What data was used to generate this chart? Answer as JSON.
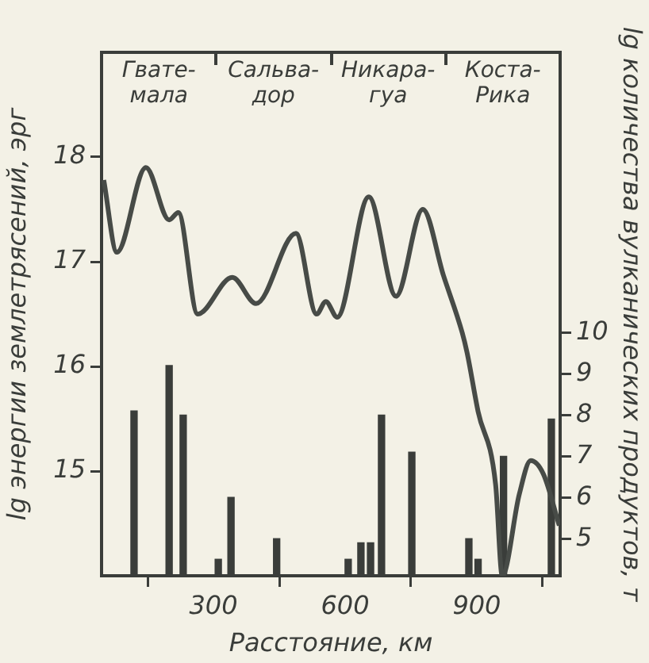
{
  "chart_data": {
    "type": "line",
    "xlabel": "Расстояние, км",
    "ylabel": "lg энергии землетрясений, эрг",
    "y2label": "lg количества вулканических продуктов, т",
    "xlim": [
      45,
      1090
    ],
    "xticks": [
      300,
      600,
      900
    ],
    "ylim": [
      14,
      19
    ],
    "yticks": [
      15,
      16,
      17,
      18
    ],
    "y2lim": [
      4.1,
      16.8
    ],
    "y2ticks": [
      5,
      6,
      7,
      8,
      9,
      10
    ],
    "grid": false,
    "legend": false,
    "marker": "none",
    "line_style": "solid",
    "annotations": [
      "Гвате-\nмала",
      "Сальва-\nдор",
      "Никара-\nгуа",
      "Коста-\nРика"
    ],
    "series": [
      {
        "color": "#474b47",
        "x": [
          50,
          80,
          146,
          199,
          220,
          264,
          343,
          397,
          488,
          535,
          556,
          582,
          654,
          716,
          777,
          824,
          867,
          878,
          903,
          943,
          958,
          997,
          1023,
          1052,
          1088
        ],
        "values": [
          17.78,
          17.09,
          17.9,
          17.4,
          17.47,
          16.5,
          16.85,
          16.6,
          17.27,
          16.5,
          16.62,
          16.47,
          17.62,
          16.67,
          17.5,
          16.87,
          16.32,
          16.13,
          15.57,
          14.87,
          14.0,
          14.78,
          15.1,
          14.97,
          14.48
        ]
      },
      {
        "type": "bar",
        "axis": "y2",
        "color": "#3a3d3a",
        "x": [
          119,
          199,
          231,
          311,
          340,
          444,
          607,
          636,
          658,
          683,
          752,
          882,
          903,
          961,
          1070
        ],
        "values": [
          8.1,
          9.2,
          8.0,
          4.5,
          6.0,
          5.0,
          4.5,
          4.9,
          4.9,
          8.0,
          7.1,
          5.0,
          4.5,
          7.0,
          7.9
        ]
      }
    ]
  }
}
